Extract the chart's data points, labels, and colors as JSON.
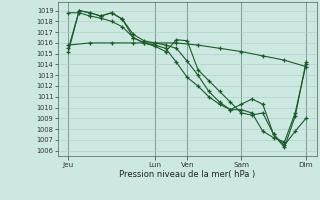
{
  "background_color": "#cce8e0",
  "grid_color": "#aacccc",
  "line_color": "#1a5c28",
  "marker": "+",
  "xlabel": "Pression niveau de la mer( hPa )",
  "ylim": [
    1005.5,
    1019.8
  ],
  "yticks": [
    1006,
    1007,
    1008,
    1009,
    1010,
    1011,
    1012,
    1013,
    1014,
    1015,
    1016,
    1017,
    1018,
    1019
  ],
  "xlim": [
    0,
    96
  ],
  "day_ticks": [
    4,
    36,
    48,
    68,
    92
  ],
  "day_labels": [
    "Jeu",
    "Lun",
    "Ven",
    "Sam",
    "Dim"
  ],
  "vlines": [
    4,
    36,
    48,
    68,
    92
  ],
  "s1_x": [
    4,
    12,
    20,
    28,
    36,
    44,
    52,
    60,
    68,
    76,
    84,
    92
  ],
  "s1_y": [
    1015.8,
    1016.0,
    1016.0,
    1016.0,
    1016.0,
    1016.0,
    1015.8,
    1015.5,
    1015.2,
    1014.8,
    1014.4,
    1013.8
  ],
  "s2_x": [
    4,
    8,
    12,
    16,
    20,
    24,
    28,
    32,
    36,
    40,
    44,
    48,
    52,
    56,
    60,
    64,
    68,
    72,
    76,
    80,
    84,
    88,
    92
  ],
  "s2_y": [
    1018.8,
    1018.8,
    1018.5,
    1018.3,
    1018.0,
    1017.5,
    1016.5,
    1016.0,
    1015.7,
    1015.2,
    1016.3,
    1016.2,
    1013.5,
    1012.5,
    1011.5,
    1010.5,
    1009.5,
    1009.3,
    1009.5,
    1007.5,
    1006.5,
    1007.8,
    1009.0
  ],
  "s3_x": [
    4,
    8,
    12,
    16,
    20,
    24,
    28,
    32,
    36,
    40,
    44,
    48,
    52,
    56,
    60,
    64,
    68,
    72,
    76,
    80,
    84,
    88,
    92
  ],
  "s3_y": [
    1015.2,
    1019.0,
    1018.8,
    1018.5,
    1018.8,
    1018.2,
    1016.8,
    1016.2,
    1016.0,
    1015.8,
    1015.5,
    1014.3,
    1013.0,
    1011.5,
    1010.5,
    1009.8,
    1010.3,
    1010.8,
    1010.3,
    1007.5,
    1006.3,
    1009.2,
    1014.2
  ],
  "s4_x": [
    4,
    8,
    12,
    16,
    20,
    24,
    28,
    32,
    36,
    40,
    44,
    48,
    52,
    56,
    60,
    64,
    68,
    72,
    76,
    80,
    84,
    88,
    92
  ],
  "s4_y": [
    1015.5,
    1019.0,
    1018.8,
    1018.5,
    1018.8,
    1018.2,
    1016.5,
    1016.0,
    1015.8,
    1015.5,
    1014.2,
    1012.8,
    1012.0,
    1011.0,
    1010.3,
    1009.8,
    1009.8,
    1009.5,
    1007.8,
    1007.2,
    1006.8,
    1009.5,
    1014.0
  ]
}
